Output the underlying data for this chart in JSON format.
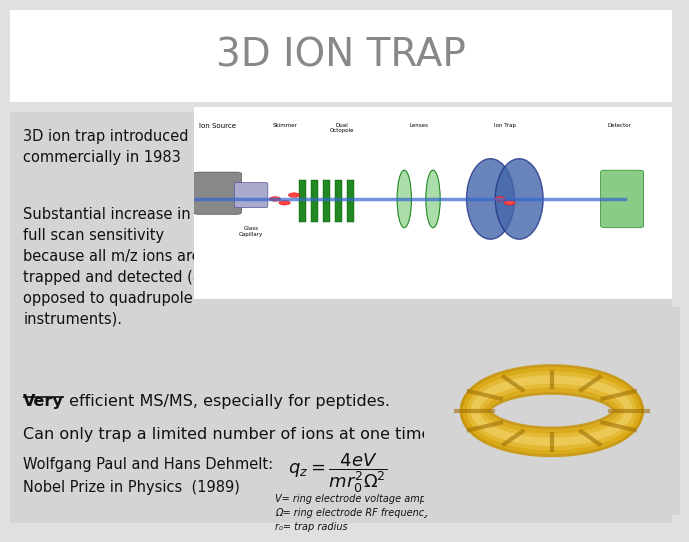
{
  "title": "3D ION TRAP",
  "title_color": "#888888",
  "title_fontsize": 28,
  "background_color": "#e0e0e0",
  "header_bg_color": "#ffffff",
  "content_bg_color": "#d4d4d4",
  "text1_title": "3D ion trap introduced\ncommercially in 1983",
  "text2_body": "Substantial increase in\nfull scan sensitivity\nbecause all m/z ions are\ntrapped and detected (as\nopposed to quadrupole\ninstruments).",
  "text3_very": "Very",
  "text3_line1": " efficient MS/MS, especially for peptides.",
  "text3_line2": "Can only trap a limited number of ions at one time.",
  "text4": "Wolfgang Paul and Hans Dehmelt:\nNobel Prize in Physics  (1989)",
  "formula_line1": "$q_z = \\dfrac{4eV}{mr_0^2\\Omega^2}$",
  "formula_notes": "V= ring electrode voltage amplitude\nΩ= ring electrode RF frequency\nr₀= trap radius",
  "font_color": "#111111",
  "font_size_body": 10.5,
  "font_size_formula": 13,
  "diagram_bg": "#ffffff",
  "gold_color": "#c8960c"
}
